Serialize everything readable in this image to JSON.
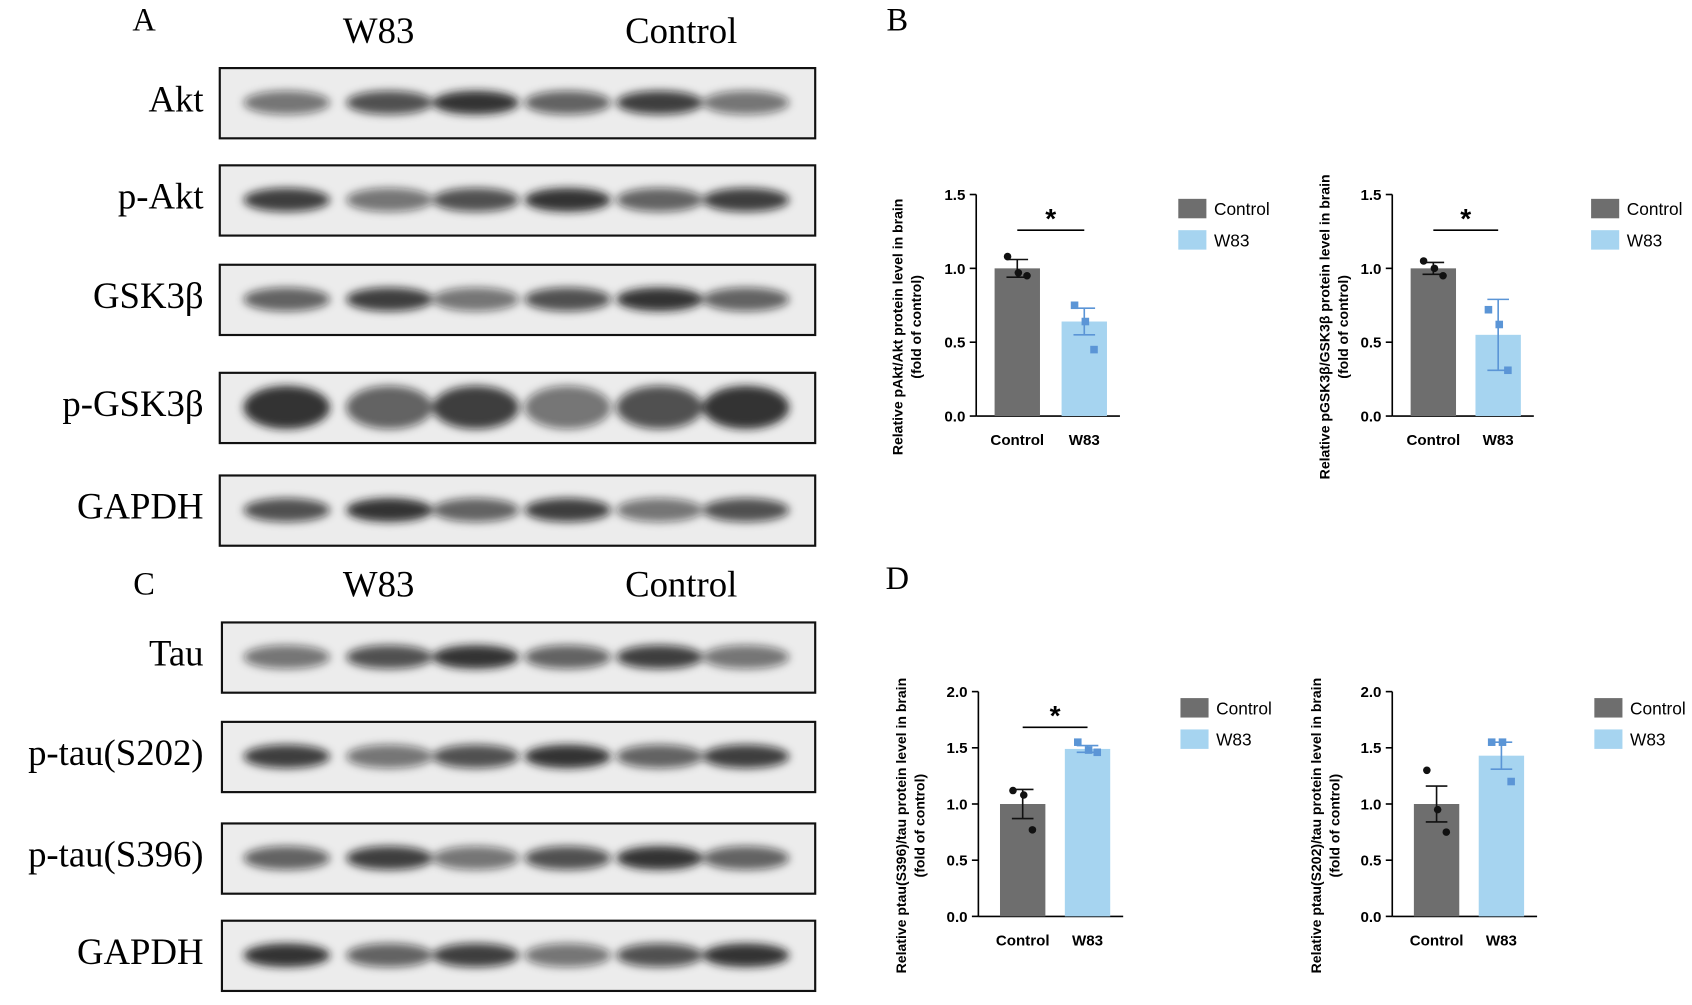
{
  "panels": {
    "a": "A",
    "b": "B",
    "c": "C",
    "d": "D"
  },
  "blots": [
    {
      "groups": [
        "W83",
        "Control"
      ],
      "rows": [
        "Akt",
        "p-Akt",
        "GSK3β",
        "p-GSK3β",
        "GAPDH"
      ]
    },
    {
      "groups": [
        "W83",
        "Control"
      ],
      "rows": [
        "Tau",
        "p-tau(S202)",
        "p-tau(S396)",
        "GAPDH"
      ]
    }
  ],
  "chart_data": [
    {
      "type": "bar",
      "ylabel": [
        "Relative pAkt/Akt  protein  level in brain",
        "(fold of control)"
      ],
      "categories": [
        "Control",
        "W83"
      ],
      "colors": [
        "#6e6e6e",
        "#a6d4f0"
      ],
      "point_colors": [
        "#111111",
        "#5b95d6"
      ],
      "values": [
        1.0,
        0.64
      ],
      "errors": [
        0.06,
        0.09
      ],
      "points": [
        [
          1.08,
          0.97,
          0.95
        ],
        [
          0.75,
          0.64,
          0.45
        ]
      ],
      "ylim": [
        0,
        1.5
      ],
      "yticks": [
        {
          "value": 0,
          "label": "0.0"
        },
        0.5,
        {
          "value": 1,
          "label": "1.0"
        },
        1.5
      ],
      "annotation": "*"
    },
    {
      "type": "bar",
      "ylabel": [
        "Relative pGSK3β/GSK3β  protein  level in brain",
        "(fold of control)"
      ],
      "categories": [
        "Control",
        "W83"
      ],
      "colors": [
        "#6e6e6e",
        "#a6d4f0"
      ],
      "point_colors": [
        "#111111",
        "#5b95d6"
      ],
      "values": [
        1.0,
        0.55
      ],
      "errors": [
        0.04,
        0.24
      ],
      "points": [
        [
          1.05,
          1.0,
          0.95
        ],
        [
          0.72,
          0.62,
          0.31
        ]
      ],
      "ylim": [
        0,
        1.5
      ],
      "yticks": [
        {
          "value": 0,
          "label": "0.0"
        },
        0.5,
        {
          "value": 1,
          "label": "1.0"
        },
        1.5
      ],
      "annotation": "*"
    },
    {
      "type": "bar",
      "ylabel": [
        "Relative ptau(S396)/tau  protein  level in brain",
        "(fold of control)"
      ],
      "categories": [
        "Control",
        "W83"
      ],
      "colors": [
        "#6e6e6e",
        "#a6d4f0"
      ],
      "point_colors": [
        "#111111",
        "#5b95d6"
      ],
      "values": [
        1.0,
        1.49
      ],
      "errors": [
        0.13,
        0.03
      ],
      "points": [
        [
          1.12,
          1.08,
          0.77
        ],
        [
          1.55,
          1.48,
          1.46
        ]
      ],
      "ylim": [
        0,
        2
      ],
      "yticks": [
        {
          "value": 0,
          "label": "0.0"
        },
        0.5,
        {
          "value": 1,
          "label": "1.0"
        },
        1.5,
        {
          "value": 2,
          "label": "2.0"
        }
      ],
      "annotation": "*"
    },
    {
      "type": "bar",
      "ylabel": [
        "Relative ptau(S202)/tau  protein  level in brain",
        "(fold of control)"
      ],
      "categories": [
        "Control",
        "W83"
      ],
      "colors": [
        "#6e6e6e",
        "#a6d4f0"
      ],
      "point_colors": [
        "#111111",
        "#5b95d6"
      ],
      "values": [
        1.0,
        1.43
      ],
      "errors": [
        0.16,
        0.12
      ],
      "points": [
        [
          1.3,
          0.95,
          0.75
        ],
        [
          1.55,
          1.55,
          1.2
        ]
      ],
      "ylim": [
        0,
        2
      ],
      "yticks": [
        {
          "value": 0,
          "label": "0.0"
        },
        0.5,
        {
          "value": 1,
          "label": "1.0"
        },
        1.5,
        {
          "value": 2,
          "label": "2.0"
        }
      ]
    }
  ]
}
